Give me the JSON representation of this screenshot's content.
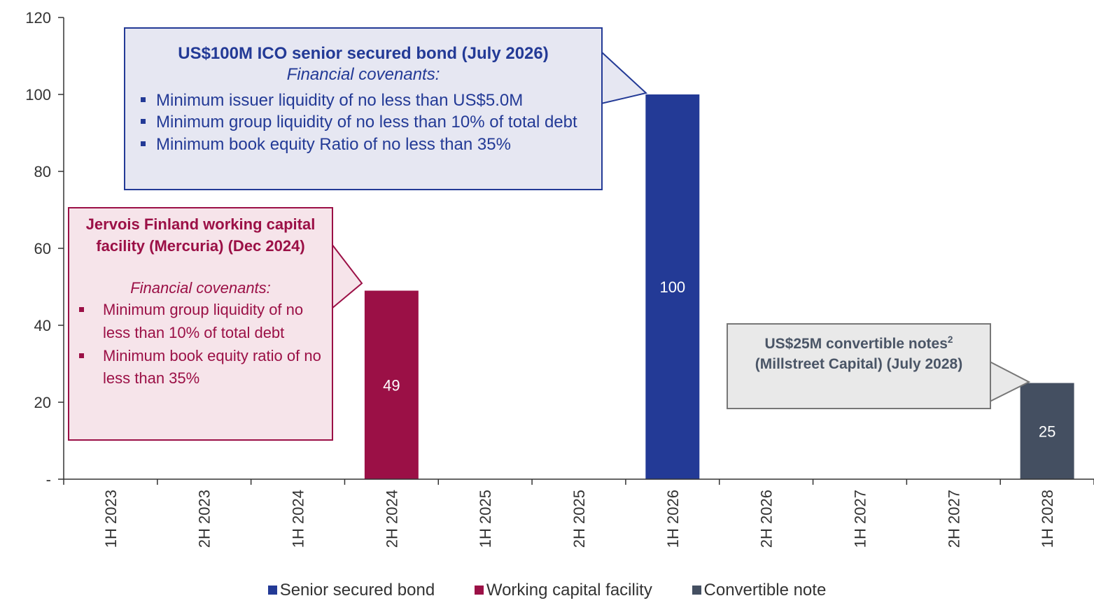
{
  "chart_data": {
    "type": "bar",
    "categories": [
      "1H 2023",
      "2H 2023",
      "1H 2024",
      "2H 2024",
      "1H 2025",
      "2H 2025",
      "1H 2026",
      "2H 2026",
      "1H 2027",
      "2H 2027",
      "1H 2028"
    ],
    "ylim": [
      0,
      120
    ],
    "yticks": [
      {
        "value": 0,
        "label": "-"
      },
      {
        "value": 20,
        "label": "20"
      },
      {
        "value": 40,
        "label": "40"
      },
      {
        "value": 60,
        "label": "60"
      },
      {
        "value": 80,
        "label": "80"
      },
      {
        "value": 100,
        "label": "100"
      },
      {
        "value": 120,
        "label": "120"
      }
    ],
    "grid": false,
    "legend_position": "bottom",
    "series": [
      {
        "name": "Senior secured bond",
        "color": "#233a96",
        "values": [
          0,
          0,
          0,
          0,
          0,
          0,
          100,
          0,
          0,
          0,
          0
        ]
      },
      {
        "name": "Working capital facility",
        "color": "#9b1046",
        "values": [
          0,
          0,
          0,
          49,
          0,
          0,
          0,
          0,
          0,
          0,
          0
        ]
      },
      {
        "name": "Convertible note",
        "color": "#444f61",
        "values": [
          0,
          0,
          0,
          0,
          0,
          0,
          0,
          0,
          0,
          0,
          25
        ]
      }
    ],
    "bars": [
      {
        "category": "2H 2024",
        "series": "Working capital facility",
        "value": 49,
        "label": "49"
      },
      {
        "category": "1H 2026",
        "series": "Senior secured bond",
        "value": 100,
        "label": "100"
      },
      {
        "category": "1H 2028",
        "series": "Convertible note",
        "value": 25,
        "label": "25"
      }
    ],
    "annotations": {
      "bond": {
        "title": "US$100M ICO senior secured bond (July 2026)",
        "subtitle": "Financial covenants:",
        "bullets": [
          "Minimum issuer liquidity of no less than US$5.0M",
          "Minimum group liquidity of no less than 10% of total debt",
          "Minimum book equity Ratio of no less than 35%"
        ]
      },
      "working_capital": {
        "title": "Jervois Finland working capital facility (Mercuria) (Dec 2024)",
        "subtitle": "Financial covenants:",
        "bullets": [
          "Minimum group liquidity of no less than 10% of total debt",
          "Minimum book equity ratio of no less than 35%"
        ]
      },
      "convertible": {
        "title_main": "US$25M convertible notes",
        "title_sup": "2",
        "title_rest": "(Millstreet Capital) (July 2028)"
      }
    }
  }
}
